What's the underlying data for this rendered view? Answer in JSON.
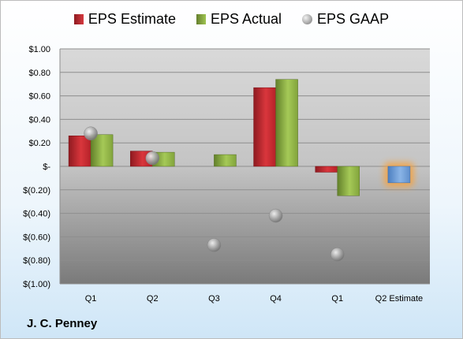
{
  "chart_data": {
    "type": "bar",
    "title": "",
    "company": "J. C. Penney",
    "categories": [
      "Q1",
      "Q2",
      "Q3",
      "Q4",
      "Q1",
      "Q2 Estimate"
    ],
    "ylim": [
      -1.0,
      1.0
    ],
    "yticks": [
      1.0,
      0.8,
      0.6,
      0.4,
      0.2,
      0,
      -0.2,
      -0.4,
      -0.6,
      -0.8,
      -1.0
    ],
    "ytick_labels": [
      "$1.00",
      "$0.80",
      "$0.60",
      "$0.40",
      "$0.20",
      "$-",
      "$(0.20)",
      "$(0.40)",
      "$(0.60)",
      "$(0.80)",
      "$(1.00)"
    ],
    "grid": true,
    "legend_position": "top",
    "series": [
      {
        "name": "EPS Estimate",
        "type": "bar",
        "color": "#c0262d",
        "values": [
          0.26,
          0.13,
          null,
          0.67,
          -0.05,
          null
        ]
      },
      {
        "name": "EPS Actual",
        "type": "bar",
        "color": "#8db043",
        "values": [
          0.27,
          0.12,
          0.1,
          0.74,
          -0.25,
          null
        ]
      },
      {
        "name": "EPS GAAP",
        "type": "scatter",
        "color": "#a9a9a9",
        "values": [
          0.28,
          0.07,
          -0.67,
          -0.42,
          -0.75,
          null
        ]
      }
    ],
    "highlight": {
      "category": "Q2 Estimate",
      "value": -0.14,
      "color": "#6f9fd8",
      "glow": "#f7a23c"
    }
  }
}
